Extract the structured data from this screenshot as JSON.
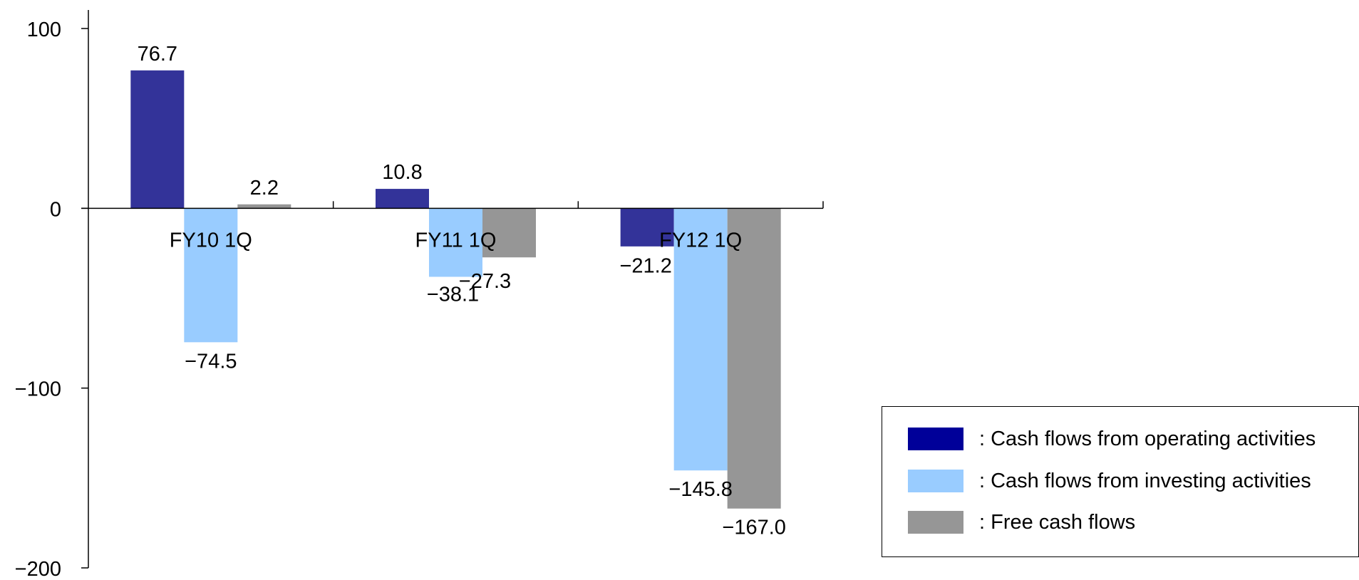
{
  "chart_data": {
    "type": "bar",
    "categories": [
      "FY10 1Q",
      "FY11 1Q",
      "FY12 1Q"
    ],
    "series": [
      {
        "name": "Cash flows from operating activities",
        "color": "#333399",
        "values": [
          76.7,
          10.8,
          -21.2
        ]
      },
      {
        "name": "Cash flows from investing activities",
        "color": "#99ccff",
        "values": [
          -74.5,
          -38.1,
          -145.8
        ]
      },
      {
        "name": "Free cash flows",
        "color": "#969696",
        "values": [
          2.2,
          -27.3,
          -167.0
        ]
      }
    ],
    "data_labels": [
      [
        "76.7",
        "10.8",
        "−21.2"
      ],
      [
        "−74.5",
        "−38.1",
        "−145.8"
      ],
      [
        "2.2",
        "−27.3",
        "−167.0"
      ]
    ],
    "ylim": [
      -200,
      100
    ],
    "yticks": [
      100,
      0,
      -100,
      -200
    ],
    "ytick_labels": [
      "100",
      "0",
      "−100",
      "−200"
    ],
    "legend_position": "bottom-right"
  },
  "legend": {
    "items": [
      {
        "label": ": Cash flows from operating activities",
        "color": "#000099"
      },
      {
        "label": ": Cash flows from investing activities",
        "color": "#99ccff"
      },
      {
        "label": ": Free cash flows",
        "color": "#969696"
      }
    ]
  }
}
